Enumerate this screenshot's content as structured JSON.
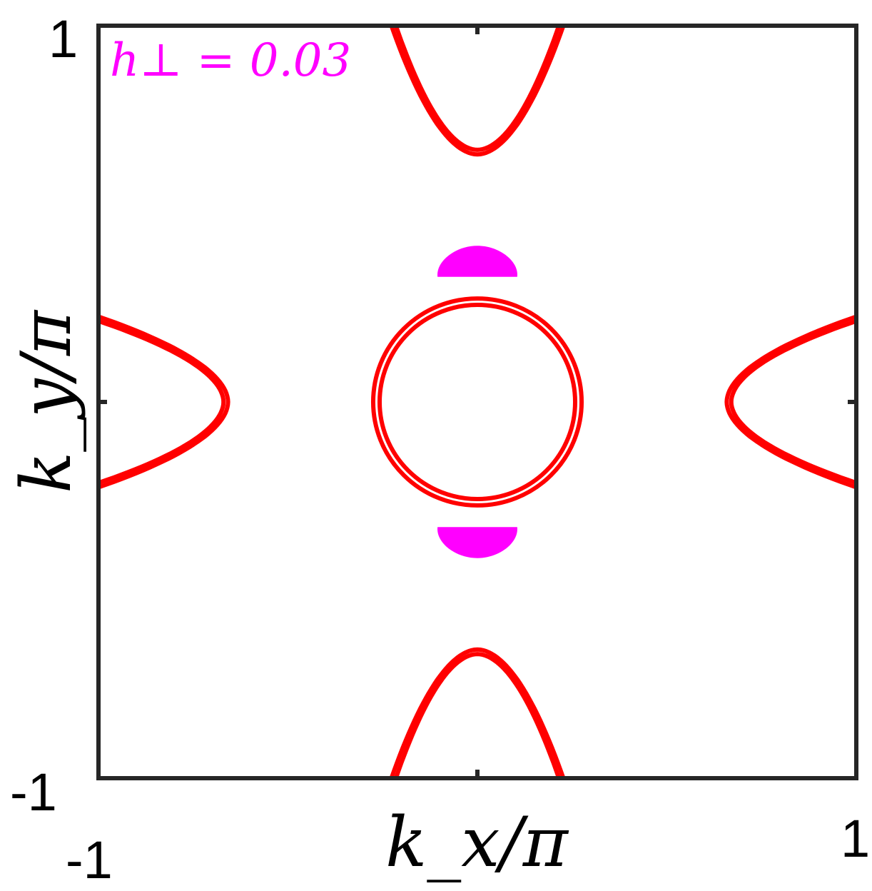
{
  "chart_data": {
    "type": "contour",
    "xlabel": "k_x/π",
    "ylabel": "k_y/π",
    "xlim": [
      -1,
      1
    ],
    "ylim": [
      -1,
      1
    ],
    "x_ticks": [
      -1,
      0,
      1
    ],
    "y_ticks": [
      -1,
      0,
      1
    ],
    "x_tick_labels": [
      "-1",
      "",
      "1"
    ],
    "y_tick_labels": [
      "-1",
      "",
      "1"
    ],
    "grid": false,
    "annotation": "h⊥ = 0.03",
    "colors": {
      "contours": "#ff0000",
      "pockets": "#ff00ff",
      "annotation": "#ff00ff",
      "axes": "#262626"
    },
    "center_rings": [
      {
        "cx": 0,
        "cy": 0,
        "r": 0.275
      },
      {
        "cx": 0,
        "cy": 0,
        "r": 0.258
      }
    ],
    "arcs": [
      {
        "position": "top",
        "apex": [
          0,
          0.67
        ],
        "width": 0.43,
        "edge": 1
      },
      {
        "position": "bottom",
        "apex": [
          0,
          -0.67
        ],
        "width": 0.43,
        "edge": -1
      },
      {
        "position": "left",
        "apex": [
          -0.67,
          0
        ],
        "width": 0.43,
        "edge": -1
      },
      {
        "position": "right",
        "apex": [
          0.67,
          0
        ],
        "width": 0.43,
        "edge": 1
      }
    ],
    "pockets": [
      {
        "cx": 0.0,
        "cy": 0.36,
        "rx": 0.105,
        "ry": 0.05
      },
      {
        "cx": 0.0,
        "cy": -0.36,
        "rx": 0.105,
        "ry": 0.05
      }
    ]
  }
}
